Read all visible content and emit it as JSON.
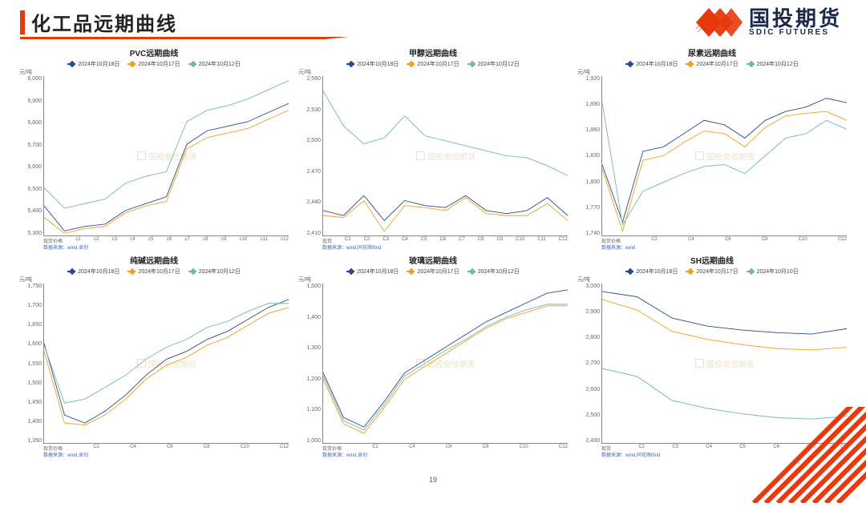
{
  "page_title": "化工品远期曲线",
  "page_number": "19",
  "logo": {
    "cn": "国投期货",
    "en": "SDIC FUTURES",
    "mark_color": "#e8380d",
    "text_color": "#1a2a4a"
  },
  "accent_color": "#e8380d",
  "series_colors": {
    "s1": "#2a4b8d",
    "s2": "#f0a020",
    "s3": "#6fb9b0"
  },
  "legend_dates": [
    "2024年10月18日",
    "2024年10月17日",
    "2024年10月12日"
  ],
  "legend_dates_sh": [
    "2024年10月18日",
    "2024年10月17日",
    "2024年10月10日"
  ],
  "ylabel": "元/吨",
  "watermark_text": "国投安信期货",
  "charts": [
    {
      "title": "PVC远期曲线",
      "source": "数据来源：wind,卓创",
      "ylim": [
        5300,
        6000
      ],
      "ytick_step": 100,
      "xticks": [
        "现货价格",
        "c1",
        "c2",
        "c3",
        "c4",
        "c5",
        "c6",
        "c7",
        "c8",
        "c9",
        "c10",
        "c11",
        "c12"
      ],
      "series": {
        "s1": [
          5430,
          5320,
          5340,
          5350,
          5410,
          5440,
          5470,
          5700,
          5760,
          5780,
          5800,
          5840,
          5880
        ],
        "s2": [
          5380,
          5310,
          5330,
          5340,
          5400,
          5430,
          5450,
          5680,
          5730,
          5750,
          5770,
          5810,
          5850
        ],
        "s3": [
          5510,
          5420,
          5440,
          5460,
          5530,
          5560,
          5580,
          5800,
          5850,
          5870,
          5900,
          5940,
          5980
        ]
      }
    },
    {
      "title": "甲醇远期曲线",
      "source": "数据来源：wind,同花顺Ifind",
      "ylim": [
        2400,
        2560
      ],
      "ytick_step": 30,
      "xticks": [
        "现货",
        "C1",
        "C2",
        "C3",
        "C4",
        "C5",
        "C6",
        "C7",
        "C8",
        "C9",
        "C10",
        "C11",
        "C12"
      ],
      "series": {
        "s1": [
          2425,
          2420,
          2440,
          2415,
          2435,
          2430,
          2428,
          2440,
          2425,
          2422,
          2425,
          2438,
          2420
        ],
        "s2": [
          2420,
          2418,
          2435,
          2404,
          2430,
          2428,
          2425,
          2438,
          2422,
          2420,
          2420,
          2432,
          2415
        ],
        "s3": [
          2545,
          2510,
          2492,
          2498,
          2520,
          2500,
          2495,
          2490,
          2485,
          2480,
          2478,
          2470,
          2460
        ]
      }
    },
    {
      "title": "尿素远期曲线",
      "source": "数据来源：wind",
      "ylim": [
        1740,
        1920
      ],
      "ytick_step": 30,
      "xticks": [
        "现货价格",
        "C2",
        "C4",
        "C6",
        "C8",
        "C10",
        "C12"
      ],
      "series": {
        "s1": [
          1820,
          1755,
          1835,
          1840,
          1855,
          1870,
          1865,
          1850,
          1870,
          1880,
          1885,
          1895,
          1890
        ],
        "s2": [
          1815,
          1745,
          1825,
          1830,
          1845,
          1858,
          1855,
          1840,
          1862,
          1875,
          1878,
          1880,
          1870
        ],
        "s3": [
          1890,
          1752,
          1790,
          1800,
          1810,
          1818,
          1820,
          1810,
          1830,
          1850,
          1855,
          1870,
          1860
        ]
      }
    },
    {
      "title": "纯碱远期曲线",
      "source": "数据来源：wind,卓创",
      "ylim": [
        1350,
        1750
      ],
      "ytick_step": 50,
      "xticks": [
        "现货价格",
        "C2",
        "C4",
        "C6",
        "C8",
        "C10",
        "C12"
      ],
      "series": {
        "s1": [
          1600,
          1420,
          1400,
          1430,
          1470,
          1520,
          1560,
          1580,
          1610,
          1630,
          1660,
          1690,
          1710
        ],
        "s2": [
          1580,
          1400,
          1395,
          1420,
          1460,
          1510,
          1545,
          1565,
          1595,
          1615,
          1645,
          1675,
          1690
        ],
        "s3": [
          1595,
          1450,
          1460,
          1490,
          1520,
          1560,
          1590,
          1610,
          1640,
          1655,
          1680,
          1700,
          1700
        ]
      }
    },
    {
      "title": "玻璃远期曲线",
      "source": "数据来源：wind,卓创",
      "ylim": [
        1000,
        1500
      ],
      "ytick_step": 100,
      "xticks": [
        "现货价格",
        "C2",
        "C4",
        "C6",
        "C8",
        "C10",
        "C12"
      ],
      "series": {
        "s1": [
          1220,
          1080,
          1050,
          1130,
          1220,
          1260,
          1300,
          1340,
          1380,
          1410,
          1440,
          1470,
          1480
        ],
        "s2": [
          1200,
          1060,
          1030,
          1110,
          1200,
          1240,
          1280,
          1320,
          1360,
          1390,
          1410,
          1430,
          1430
        ],
        "s3": [
          1210,
          1070,
          1040,
          1120,
          1210,
          1250,
          1290,
          1325,
          1365,
          1395,
          1418,
          1435,
          1435
        ]
      }
    },
    {
      "title": "SH远期曲线",
      "source": "数据来源：wind,同花顺Ifind",
      "ylim": [
        2400,
        3000
      ],
      "ytick_step": 100,
      "xticks": [
        "现货",
        "C2",
        "C3",
        "C4",
        "C5",
        "C6",
        "C7",
        "C8"
      ],
      "series": {
        "s1": [
          2970,
          2950,
          2870,
          2840,
          2825,
          2815,
          2810,
          2830
        ],
        "s2": [
          2940,
          2900,
          2820,
          2790,
          2770,
          2755,
          2750,
          2760
        ],
        "s3": [
          2680,
          2650,
          2560,
          2530,
          2510,
          2495,
          2490,
          2500
        ]
      },
      "legend_override": "sh"
    }
  ]
}
